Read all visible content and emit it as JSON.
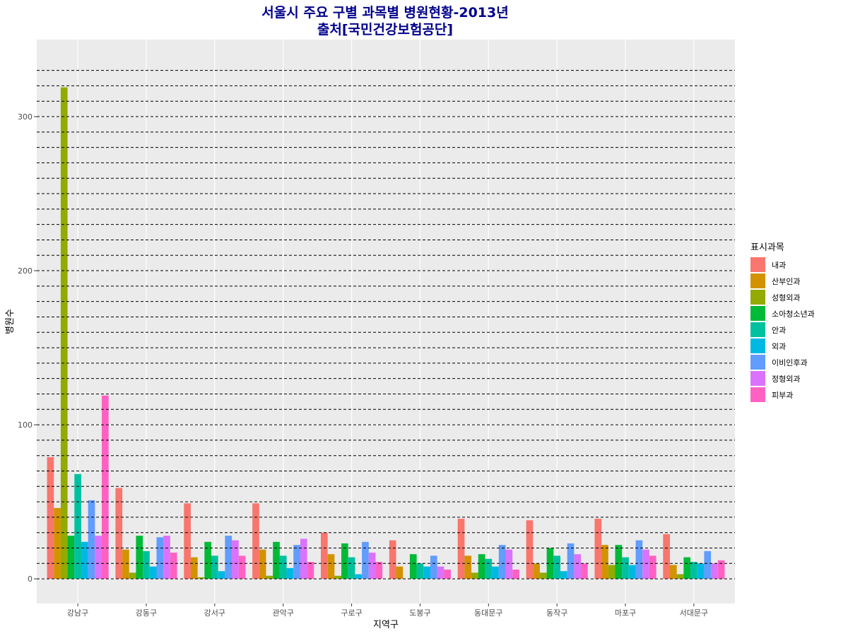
{
  "chart_data": {
    "type": "bar",
    "title": "서울시 주요 구별 과목별 병원현황-2013년",
    "subtitle": "출처[국민건강보험공단]",
    "xlabel": "지역구",
    "ylabel": "병원수",
    "ylim": [
      -16,
      350
    ],
    "y_ticks": [
      0,
      100,
      200,
      300
    ],
    "grid": true,
    "dashed_reference_lines": [
      0,
      10,
      20,
      30,
      40,
      50,
      60,
      70,
      80,
      90,
      100,
      110,
      120,
      130,
      140,
      150,
      160,
      170,
      180,
      190,
      200,
      210,
      220,
      230,
      240,
      250,
      260,
      270,
      280,
      290,
      300,
      310,
      320,
      330
    ],
    "legend": {
      "title": "표시과목",
      "position": "right"
    },
    "categories": [
      "강남구",
      "강동구",
      "강서구",
      "관악구",
      "구로구",
      "도봉구",
      "동대문구",
      "동작구",
      "마포구",
      "서대문구"
    ],
    "series": [
      {
        "name": "내과",
        "color": "#F8766D",
        "values": [
          79,
          59,
          49,
          49,
          30,
          25,
          39,
          38,
          39,
          29
        ]
      },
      {
        "name": "산부인과",
        "color": "#D39200",
        "values": [
          46,
          19,
          14,
          19,
          16,
          8,
          15,
          10,
          22,
          9
        ]
      },
      {
        "name": "성형외과",
        "color": "#93AA00",
        "values": [
          319,
          4,
          1,
          2,
          2,
          0,
          4,
          4,
          9,
          3
        ]
      },
      {
        "name": "소아청소년과",
        "color": "#00BA38",
        "values": [
          28,
          28,
          24,
          24,
          23,
          16,
          16,
          20,
          22,
          14
        ]
      },
      {
        "name": "안과",
        "color": "#00C19F",
        "values": [
          68,
          18,
          15,
          15,
          14,
          10,
          13,
          15,
          14,
          11
        ]
      },
      {
        "name": "외과",
        "color": "#00B9E3",
        "values": [
          24,
          8,
          5,
          7,
          3,
          8,
          8,
          5,
          9,
          10
        ]
      },
      {
        "name": "이비인후과",
        "color": "#619CFF",
        "values": [
          51,
          27,
          28,
          22,
          24,
          15,
          22,
          23,
          25,
          18
        ]
      },
      {
        "name": "정형외과",
        "color": "#DB72FB",
        "values": [
          28,
          28,
          25,
          26,
          17,
          8,
          19,
          16,
          19,
          10
        ]
      },
      {
        "name": "피부과",
        "color": "#FF61C3",
        "values": [
          119,
          17,
          15,
          11,
          11,
          6,
          6,
          10,
          15,
          12
        ]
      }
    ]
  }
}
